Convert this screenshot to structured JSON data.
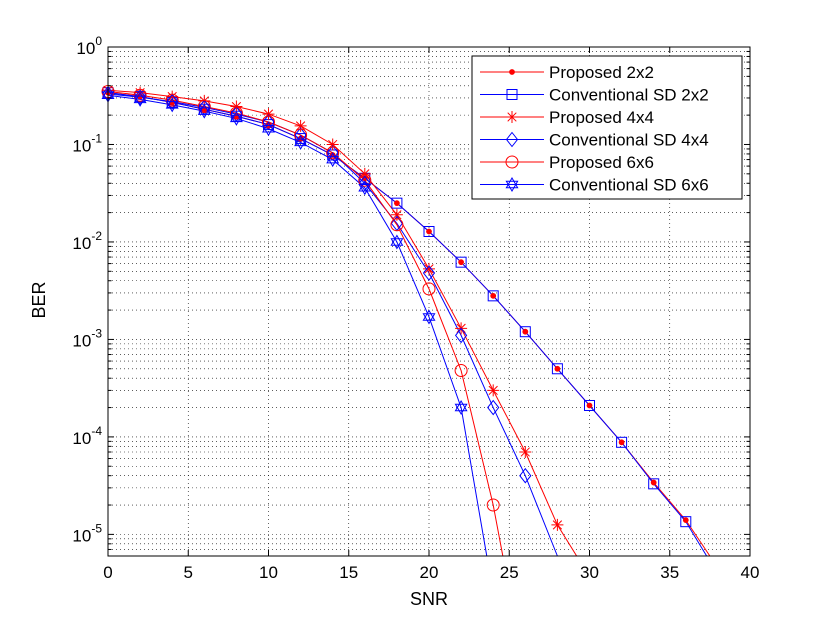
{
  "chart_data": {
    "type": "line",
    "title": "",
    "xlabel": "SNR",
    "ylabel": "BER",
    "xlim": [
      0,
      40
    ],
    "ylim": [
      6e-06,
      1
    ],
    "yscale": "log",
    "grid": true,
    "legend_position": "top-right",
    "x_ticks": [
      0,
      5,
      10,
      15,
      20,
      25,
      30,
      35,
      40
    ],
    "x_tick_labels": [
      "0",
      "5",
      "10",
      "15",
      "20",
      "25",
      "30",
      "35",
      "40"
    ],
    "y_ticks": [
      {
        "value": 1,
        "base": "10",
        "exp": "0"
      },
      {
        "value": 0.1,
        "base": "10",
        "exp": "-1"
      },
      {
        "value": 0.01,
        "base": "10",
        "exp": "-2"
      },
      {
        "value": 0.001,
        "base": "10",
        "exp": "-3"
      },
      {
        "value": 0.0001,
        "base": "10",
        "exp": "-4"
      },
      {
        "value": 1e-05,
        "base": "10",
        "exp": "-5"
      }
    ],
    "series": [
      {
        "name": "Proposed 2x2",
        "color": "#ff0000",
        "marker": "dot",
        "x": [
          0,
          2,
          4,
          6,
          8,
          10,
          12,
          14,
          16,
          18,
          20,
          22,
          24,
          26,
          28,
          30,
          32,
          34,
          36,
          37.5
        ],
        "values": [
          0.34,
          0.31,
          0.27,
          0.23,
          0.195,
          0.16,
          0.115,
          0.078,
          0.045,
          0.025,
          0.0128,
          0.0062,
          0.0028,
          0.0012,
          0.0005,
          0.00021,
          8.8e-05,
          3.4e-05,
          1.4e-05,
          6e-06
        ]
      },
      {
        "name": "Conventional SD 2x2",
        "color": "#0000ff",
        "marker": "square",
        "x": [
          0,
          2,
          4,
          6,
          8,
          10,
          12,
          14,
          16,
          18,
          20,
          22,
          24,
          26,
          28,
          30,
          32,
          34,
          36,
          37.3
        ],
        "values": [
          0.34,
          0.31,
          0.27,
          0.23,
          0.195,
          0.16,
          0.115,
          0.078,
          0.045,
          0.025,
          0.0128,
          0.0062,
          0.0028,
          0.0012,
          0.0005,
          0.00021,
          8.8e-05,
          3.3e-05,
          1.35e-05,
          6e-06
        ]
      },
      {
        "name": "Proposed 4x4",
        "color": "#ff0000",
        "marker": "star",
        "x": [
          0,
          2,
          4,
          6,
          8,
          10,
          12,
          14,
          16,
          18,
          20,
          22,
          24,
          26,
          28,
          29.2
        ],
        "values": [
          0.36,
          0.34,
          0.31,
          0.28,
          0.245,
          0.205,
          0.155,
          0.1,
          0.05,
          0.019,
          0.0053,
          0.0013,
          0.0003,
          7e-05,
          1.25e-05,
          6e-06
        ]
      },
      {
        "name": "Conventional SD 4x4",
        "color": "#0000ff",
        "marker": "diamond",
        "x": [
          0,
          2,
          4,
          6,
          8,
          10,
          12,
          14,
          16,
          18,
          20,
          22,
          24,
          26,
          28
        ],
        "values": [
          0.33,
          0.305,
          0.275,
          0.24,
          0.205,
          0.17,
          0.125,
          0.082,
          0.04,
          0.0155,
          0.0048,
          0.0011,
          0.0002,
          4e-05,
          6e-06
        ]
      },
      {
        "name": "Proposed 6x6",
        "color": "#ff0000",
        "marker": "circle",
        "x": [
          0,
          2,
          4,
          6,
          8,
          10,
          12,
          14,
          16,
          18,
          20,
          22,
          24,
          24.6
        ],
        "values": [
          0.35,
          0.32,
          0.285,
          0.245,
          0.21,
          0.17,
          0.125,
          0.082,
          0.043,
          0.015,
          0.0033,
          0.00048,
          2e-05,
          6e-06
        ]
      },
      {
        "name": "Conventional SD 6x6",
        "color": "#0000ff",
        "marker": "hexagram",
        "x": [
          0,
          2,
          4,
          6,
          8,
          10,
          12,
          14,
          16,
          18,
          20,
          22,
          23.6
        ],
        "values": [
          0.32,
          0.29,
          0.255,
          0.22,
          0.185,
          0.145,
          0.105,
          0.07,
          0.036,
          0.01,
          0.0017,
          0.0002,
          6e-06
        ]
      }
    ]
  }
}
